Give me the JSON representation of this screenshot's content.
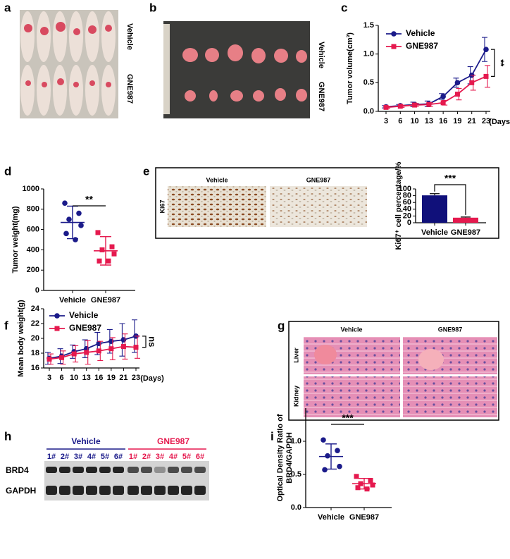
{
  "panels": {
    "a": {
      "letter": "a",
      "labels": [
        "Vehicle",
        "GNE987"
      ]
    },
    "b": {
      "letter": "b",
      "labels": [
        "Vehicle",
        "GNE987"
      ]
    },
    "c": {
      "letter": "c"
    },
    "d": {
      "letter": "d"
    },
    "e": {
      "letter": "e",
      "image_labels": [
        "Vehicle",
        "GNE987"
      ],
      "stain": "Ki67"
    },
    "f": {
      "letter": "f"
    },
    "g": {
      "letter": "g",
      "columns": [
        "Vehicle",
        "GNE987"
      ],
      "rows": [
        "Liver",
        "Kidney"
      ]
    },
    "h": {
      "letter": "h",
      "groups": [
        "Vehicle",
        "GNE987"
      ],
      "vehicle_lanes": [
        "1#",
        "2#",
        "3#",
        "4#",
        "5#",
        "6#"
      ],
      "gne987_lanes": [
        "1#",
        "2#",
        "3#",
        "4#",
        "5#",
        "6#"
      ],
      "proteins": [
        "BRD4",
        "GAPDH"
      ]
    },
    "i": {
      "letter": "i"
    }
  },
  "chart_data": [
    {
      "type": "line",
      "ylabel": "Tumor volume(cm³)",
      "xlabel": "(Days)",
      "categories": [
        "3",
        "6",
        "10",
        "13",
        "16",
        "19",
        "21",
        "23"
      ],
      "series": [
        {
          "name": "Vehicle",
          "color": "#1b1b8a",
          "marker": "circle",
          "values": [
            0.08,
            0.1,
            0.12,
            0.13,
            0.26,
            0.5,
            0.63,
            1.08
          ],
          "errors": [
            0.02,
            0.02,
            0.04,
            0.05,
            0.05,
            0.08,
            0.15,
            0.21
          ]
        },
        {
          "name": "GNE987",
          "color": "#e5194e",
          "marker": "square",
          "values": [
            0.07,
            0.09,
            0.11,
            0.12,
            0.15,
            0.3,
            0.5,
            0.61
          ],
          "errors": [
            0.02,
            0.02,
            0.03,
            0.03,
            0.04,
            0.1,
            0.13,
            0.19
          ]
        }
      ],
      "ylim": [
        0,
        1.5
      ],
      "yticks": [
        {
          "value": 0,
          "label": "0.0"
        },
        {
          "value": 0.5,
          "label": "0.5"
        },
        {
          "value": 1,
          "label": "1.0"
        },
        {
          "value": 1.5,
          "label": "1.5"
        }
      ],
      "annotation": "**"
    },
    {
      "type": "dot",
      "ylabel": "Tumor weight(mg)",
      "categories": [
        "Vehicle",
        "GNE987"
      ],
      "colors": [
        "#1b1b8a",
        "#e5194e"
      ],
      "markers": [
        "circle",
        "square"
      ],
      "points": [
        [
          860,
          760,
          700,
          640,
          560,
          500
        ],
        [
          570,
          430,
          400,
          360,
          290,
          290
        ]
      ],
      "means": [
        670,
        390
      ],
      "sds": [
        160,
        140
      ],
      "ylim": [
        0,
        1000
      ],
      "yticks": [
        0,
        200,
        400,
        600,
        800,
        1000
      ],
      "annotation": "**"
    },
    {
      "type": "bar",
      "ylabel": "Ki67⁺ cell percentage/%",
      "categories": [
        "Vehicle",
        "GNE987"
      ],
      "values": [
        81,
        15
      ],
      "errors": [
        5,
        2
      ],
      "colors": [
        "#10107a",
        "#e5194e"
      ],
      "ylim": [
        0,
        100
      ],
      "yticks": [
        0,
        20,
        40,
        60,
        80,
        100
      ],
      "annotation": "***"
    },
    {
      "type": "line",
      "ylabel": "Mean body weight(g)",
      "xlabel": "(Days)",
      "categories": [
        "3",
        "6",
        "10",
        "13",
        "16",
        "19",
        "21",
        "23"
      ],
      "series": [
        {
          "name": "Vehicle",
          "color": "#1b1b8a",
          "marker": "circle",
          "values": [
            17.3,
            17.6,
            18.2,
            18.6,
            19.3,
            19.6,
            19.8,
            20.3
          ],
          "errors": [
            0.8,
            1.0,
            0.9,
            1.2,
            1.5,
            1.6,
            2.2,
            2.2
          ]
        },
        {
          "name": "GNE987",
          "color": "#e5194e",
          "marker": "square",
          "values": [
            17.2,
            17.4,
            17.9,
            18.1,
            18.3,
            18.6,
            18.9,
            18.8
          ],
          "errors": [
            0.7,
            0.9,
            1.1,
            1.6,
            1.3,
            1.5,
            1.7,
            1.5
          ]
        }
      ],
      "ylim": [
        16,
        24
      ],
      "yticks": [
        16,
        18,
        20,
        22,
        24
      ],
      "annotation": "ns"
    },
    {
      "type": "dot",
      "ylabel": [
        "Optical Density Ratio of",
        "BRD4/GAPDH"
      ],
      "categories": [
        "Vehicle",
        "GNE987"
      ],
      "colors": [
        "#1b1b8a",
        "#e5194e"
      ],
      "markers": [
        "circle",
        "square"
      ],
      "points": [
        [
          1.02,
          0.86,
          0.78,
          0.62,
          0.57
        ],
        [
          0.47,
          0.41,
          0.36,
          0.34,
          0.3,
          0.28
        ]
      ],
      "means": [
        0.77,
        0.36
      ],
      "sds": [
        0.19,
        0.08
      ],
      "ylim": [
        0,
        1.5
      ],
      "yticks": [
        {
          "value": 0,
          "label": "0.0"
        },
        {
          "value": 0.5,
          "label": "0.5"
        },
        {
          "value": 1,
          "label": "1.0"
        }
      ],
      "annotation": "***"
    }
  ]
}
